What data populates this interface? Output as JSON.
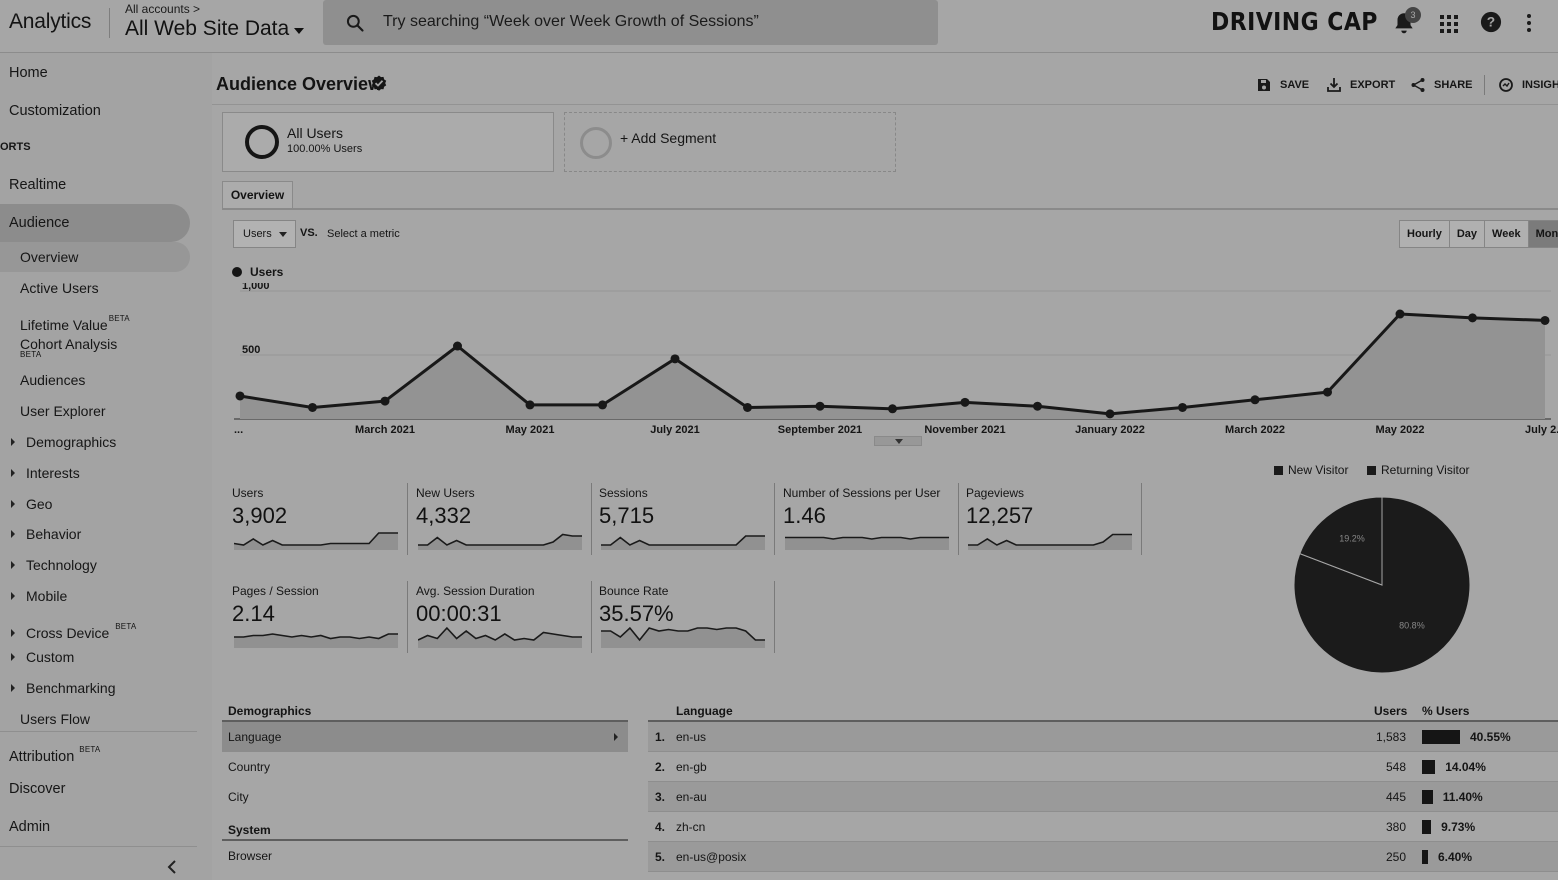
{
  "header": {
    "brand": "Analytics",
    "account_path": "All accounts",
    "property": "All Web Site Data",
    "search_placeholder": "Try searching “Week over Week Growth of Sessions”",
    "logo_text": "DRIVING CAP",
    "notification_count": "3",
    "icons": [
      "search-icon",
      "bell-icon",
      "apps-icon",
      "help-icon",
      "more-vert-icon"
    ]
  },
  "sidebar": {
    "home": "Home",
    "customization": "Customization",
    "reports_heading": "ORTS",
    "realtime": "Realtime",
    "audience": "Audience",
    "audience_items": {
      "overview": "Overview",
      "active_users": "Active Users",
      "lifetime_value": "Lifetime Value",
      "cohort_analysis": "Cohort Analysis",
      "audiences": "Audiences",
      "user_explorer": "User Explorer",
      "demographics": "Demographics",
      "interests": "Interests",
      "geo": "Geo",
      "behavior": "Behavior",
      "technology": "Technology",
      "mobile": "Mobile",
      "cross_device": "Cross Device",
      "custom": "Custom",
      "benchmarking": "Benchmarking",
      "users_flow": "Users Flow"
    },
    "beta": "BETA",
    "attribution": "Attribution",
    "discover": "Discover",
    "admin": "Admin"
  },
  "page": {
    "title": "Audience Overview",
    "actions": {
      "save": "SAVE",
      "export": "EXPORT",
      "share": "SHARE",
      "insights": "INSIGHTS"
    },
    "segments": {
      "all_users": "All Users",
      "all_users_sub": "100.00% Users",
      "add_segment": "+ Add Segment"
    },
    "tab": "Overview",
    "metric": "Users",
    "vs": "VS.",
    "select_metric": "Select a metric",
    "granularity": [
      "Hourly",
      "Day",
      "Week",
      "Month"
    ],
    "granularity_active": "Month"
  },
  "chart_data": [
    {
      "type": "line",
      "series": [
        {
          "name": "Users",
          "values": [
            180,
            90,
            140,
            570,
            110,
            110,
            470,
            90,
            100,
            80,
            130,
            100,
            40,
            90,
            150,
            210,
            820,
            790,
            770
          ]
        }
      ],
      "x": [
        "2021-01",
        "2021-02",
        "2021-03",
        "2021-04",
        "2021-05",
        "2021-06",
        "2021-07",
        "2021-08",
        "2021-09",
        "2021-10",
        "2021-11",
        "2021-12",
        "2022-01",
        "2022-02",
        "2022-03",
        "2022-04",
        "2022-05",
        "2022-06",
        "2022-07"
      ],
      "x_tick_labels": [
        "...",
        "March 2021",
        "May 2021",
        "July 2021",
        "September 2021",
        "November 2021",
        "January 2022",
        "March 2022",
        "May 2022",
        "July 2..."
      ],
      "y_tick_labels": [
        "1,000",
        "500"
      ],
      "ylim": [
        0,
        1000
      ],
      "grid": true
    },
    {
      "type": "pie",
      "categories": [
        "New Visitor",
        "Returning Visitor"
      ],
      "values": [
        80.8,
        19.2
      ],
      "labels": [
        "80.8%",
        "19.2%"
      ],
      "legend_position": "top"
    }
  ],
  "scorecards": [
    {
      "label": "Users",
      "value": "3,902",
      "spark": [
        3,
        2,
        6,
        2,
        5,
        2,
        2,
        2,
        2,
        2,
        3,
        3,
        3,
        3,
        3,
        10,
        10,
        10
      ]
    },
    {
      "label": "New Users",
      "value": "4,332",
      "spark": [
        2,
        2,
        7,
        2,
        5,
        2,
        2,
        2,
        2,
        2,
        2,
        2,
        2,
        2,
        4,
        9,
        8,
        8
      ]
    },
    {
      "label": "Sessions",
      "value": "5,715",
      "spark": [
        2,
        2,
        7,
        2,
        5,
        2,
        2,
        2,
        2,
        2,
        2,
        2,
        2,
        2,
        2,
        8,
        8,
        8
      ]
    },
    {
      "label": "Number of Sessions per User",
      "value": "1.46",
      "spark": [
        7,
        7,
        7,
        7,
        7,
        6,
        7,
        7,
        7,
        6,
        7,
        7,
        7,
        6,
        7,
        7,
        7,
        7
      ]
    },
    {
      "label": "Pageviews",
      "value": "12,257",
      "spark": [
        2,
        2,
        6,
        2,
        5,
        2,
        2,
        2,
        2,
        2,
        2,
        2,
        2,
        2,
        4,
        9,
        9,
        9
      ]
    },
    {
      "label": "Pages / Session",
      "value": "2.14",
      "spark": [
        6,
        6,
        7,
        7,
        8,
        7,
        6,
        7,
        6,
        7,
        5,
        6,
        6,
        5,
        6,
        5,
        8,
        8
      ]
    },
    {
      "label": "Avg. Session Duration",
      "value": "00:00:31",
      "spark": [
        4,
        7,
        5,
        12,
        5,
        10,
        5,
        7,
        4,
        8,
        4,
        5,
        4,
        9,
        8,
        7,
        6,
        6
      ]
    },
    {
      "label": "Bounce Rate",
      "value": "35.57%",
      "spark": [
        10,
        10,
        6,
        12,
        4,
        12,
        10,
        11,
        10,
        10,
        12,
        12,
        11,
        12,
        12,
        10,
        4,
        4
      ]
    }
  ],
  "demographics": {
    "heading": "Demographics",
    "items": [
      "Language",
      "Country",
      "City"
    ],
    "active": "Language",
    "system_heading": "System",
    "system_items": [
      "Browser"
    ]
  },
  "language_table": {
    "headers": {
      "name": "Language",
      "users": "Users",
      "pct": "% Users"
    },
    "rows": [
      {
        "rank": "1.",
        "name": "en-us",
        "users": "1,583",
        "pct": "40.55%",
        "share": 40.55
      },
      {
        "rank": "2.",
        "name": "en-gb",
        "users": "548",
        "pct": "14.04%",
        "share": 14.04
      },
      {
        "rank": "3.",
        "name": "en-au",
        "users": "445",
        "pct": "11.40%",
        "share": 11.4
      },
      {
        "rank": "4.",
        "name": "zh-cn",
        "users": "380",
        "pct": "9.73%",
        "share": 9.73
      },
      {
        "rank": "5.",
        "name": "en-us@posix",
        "users": "250",
        "pct": "6.40%",
        "share": 6.4
      }
    ]
  }
}
